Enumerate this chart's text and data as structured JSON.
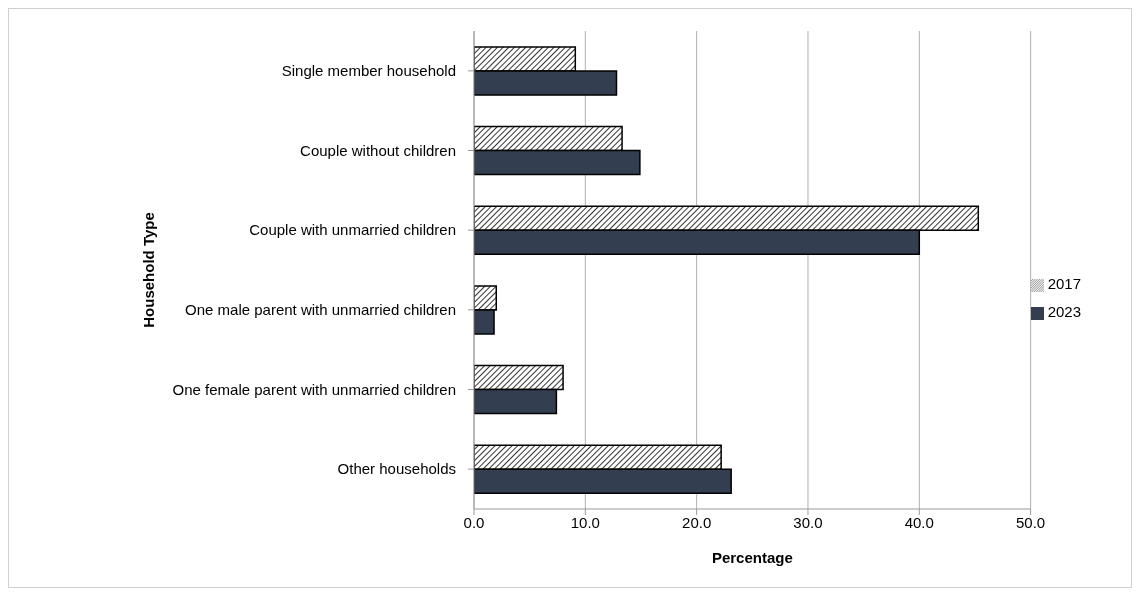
{
  "chart_data": {
    "type": "bar",
    "orientation": "horizontal",
    "xlabel": "Percentage",
    "ylabel": "Household Type",
    "categories": [
      "Single member household",
      "Couple without children",
      "Couple with unmarried children",
      "One male parent with unmarried children",
      "One female parent with unmarried children",
      "Other households"
    ],
    "series": [
      {
        "name": "2017",
        "color": "#000000",
        "values": [
          9.1,
          13.3,
          45.3,
          2.0,
          8.0,
          22.2
        ]
      },
      {
        "name": "2023",
        "color": "#333f50",
        "values": [
          12.8,
          14.9,
          40.0,
          1.8,
          7.4,
          23.1
        ]
      }
    ],
    "xlim": [
      0,
      50
    ],
    "xticks": [
      {
        "value": 0,
        "label": "0.0"
      },
      {
        "value": 10,
        "label": "10.0"
      },
      {
        "value": 20,
        "label": "20.0"
      },
      {
        "value": 30,
        "label": "30.0"
      },
      {
        "value": 40,
        "label": "40.0"
      },
      {
        "value": 50,
        "label": "50.0"
      }
    ],
    "grid": "x",
    "legend": "right"
  }
}
